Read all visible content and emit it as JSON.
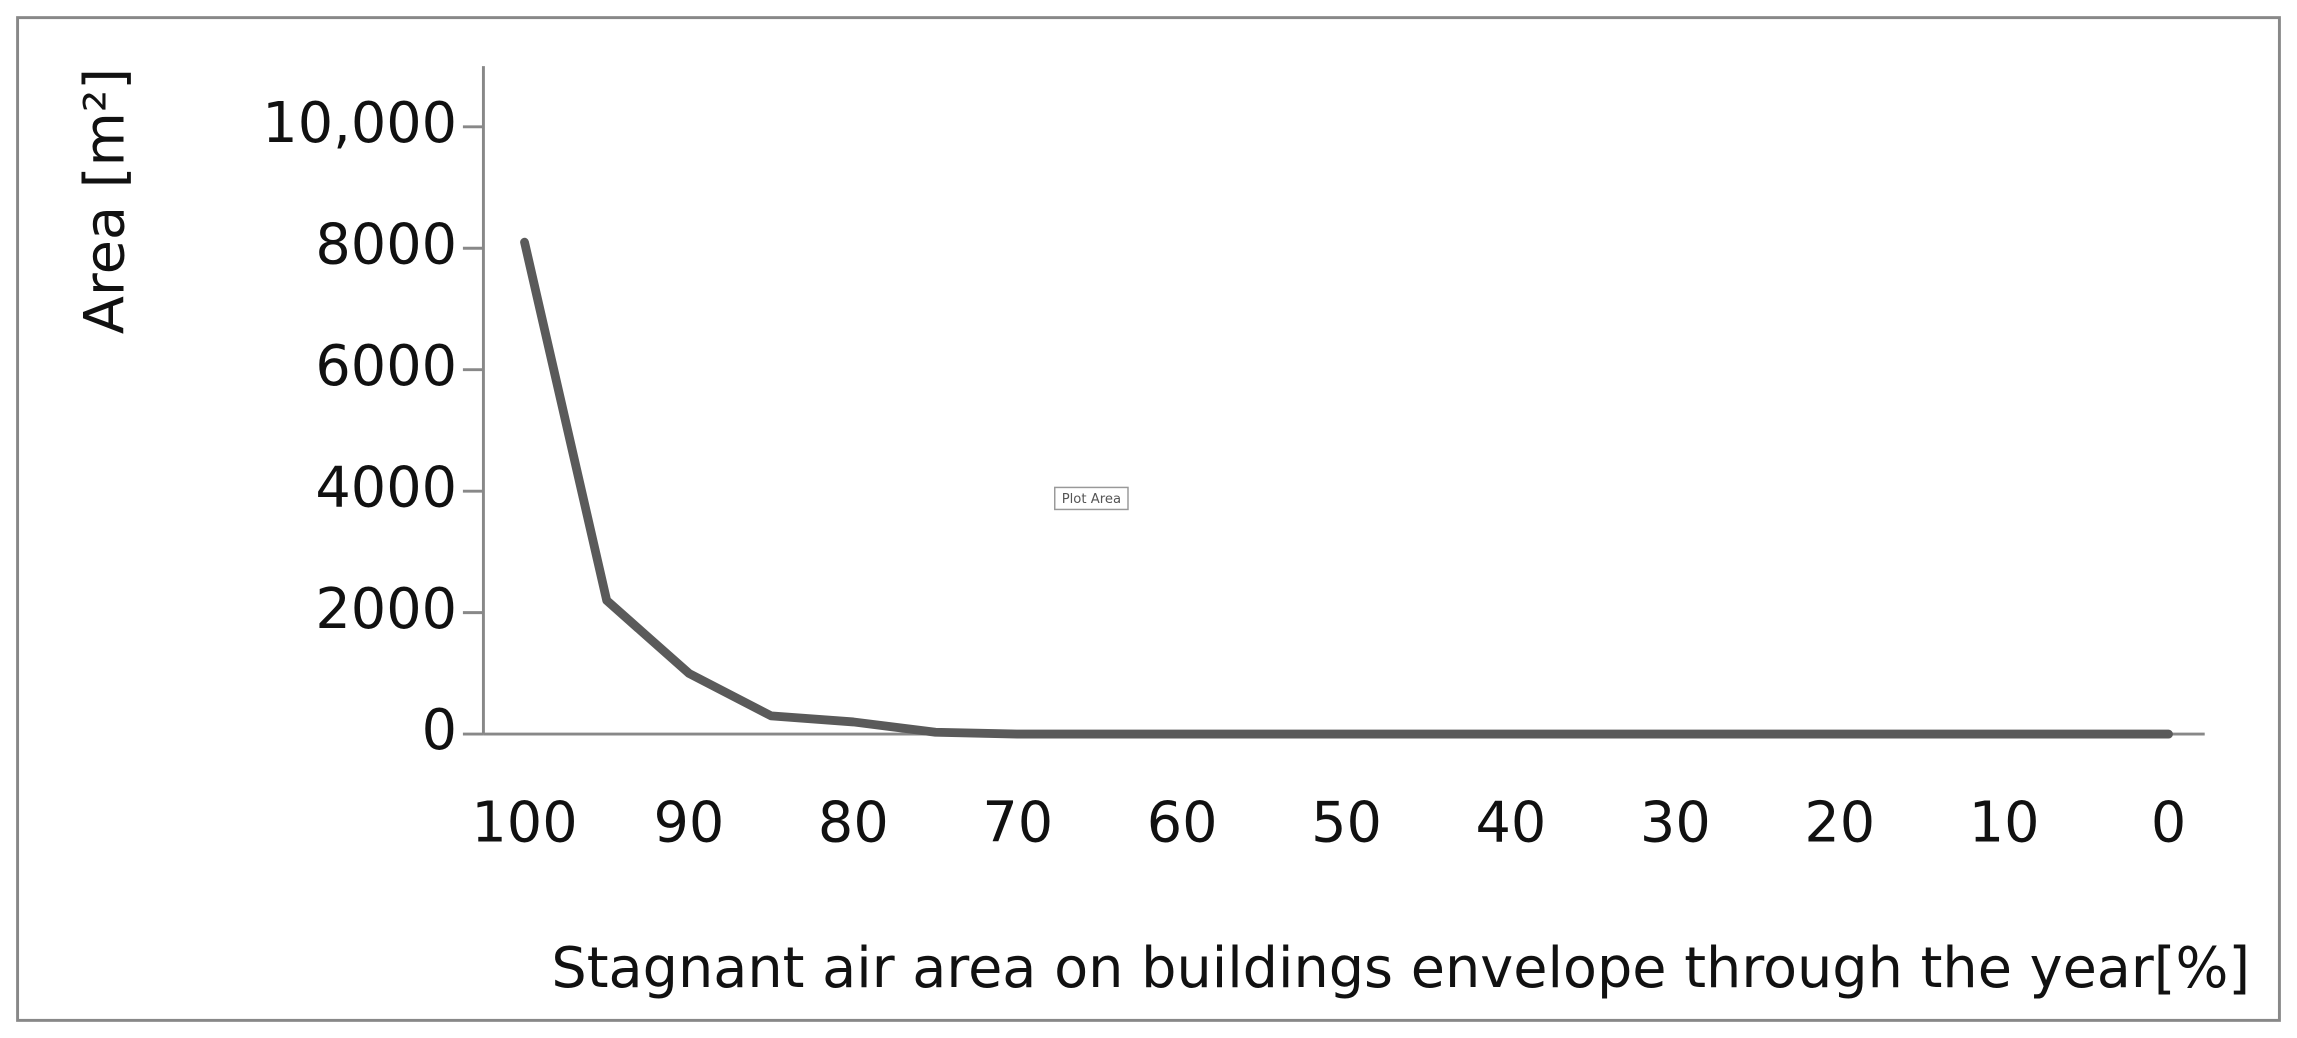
{
  "chart_data": {
    "type": "line",
    "y_label": "Area [m²]",
    "x_label": "Stagnant air area on buildings envelope through the year[%]",
    "annotation": "Plot Area",
    "x": [
      100,
      95,
      90,
      85,
      80,
      75,
      70,
      65,
      60,
      55,
      50,
      45,
      40,
      35,
      30,
      25,
      20,
      15,
      10,
      5,
      0
    ],
    "series": [
      {
        "color": "#5a5a5a",
        "values": [
          8100,
          2200,
          1000,
          300,
          200,
          30,
          0,
          0,
          0,
          0,
          0,
          0,
          0,
          0,
          0,
          0,
          0,
          0,
          0,
          0,
          0
        ]
      }
    ],
    "xlim": [
      102.5,
      -2.2
    ],
    "xticks": [
      100,
      90,
      80,
      70,
      60,
      50,
      40,
      30,
      20,
      10,
      0
    ],
    "ylim": [
      0,
      11000
    ],
    "yticks": [
      0,
      2000,
      4000,
      6000,
      8000,
      {
        "value": 10000,
        "label": "10,000"
      }
    ],
    "grid": false
  }
}
